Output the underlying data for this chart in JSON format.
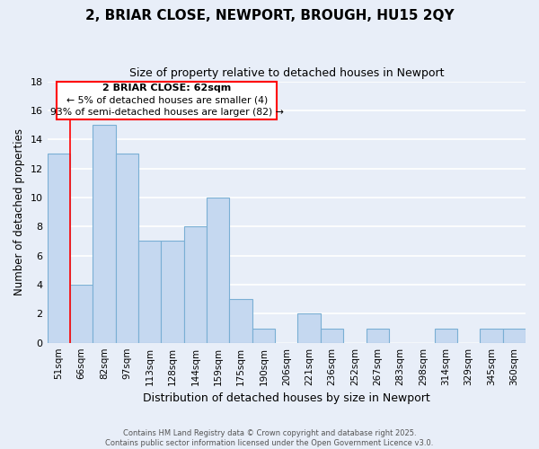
{
  "title": "2, BRIAR CLOSE, NEWPORT, BROUGH, HU15 2QY",
  "subtitle": "Size of property relative to detached houses in Newport",
  "xlabel": "Distribution of detached houses by size in Newport",
  "ylabel": "Number of detached properties",
  "bar_color": "#c5d8f0",
  "bar_edge_color": "#7aafd4",
  "bins": [
    "51sqm",
    "66sqm",
    "82sqm",
    "97sqm",
    "113sqm",
    "128sqm",
    "144sqm",
    "159sqm",
    "175sqm",
    "190sqm",
    "206sqm",
    "221sqm",
    "236sqm",
    "252sqm",
    "267sqm",
    "283sqm",
    "298sqm",
    "314sqm",
    "329sqm",
    "345sqm",
    "360sqm"
  ],
  "values": [
    13,
    4,
    15,
    13,
    7,
    7,
    8,
    10,
    3,
    1,
    0,
    2,
    1,
    0,
    1,
    0,
    0,
    1,
    0,
    1,
    1
  ],
  "ylim": [
    0,
    18
  ],
  "yticks": [
    0,
    2,
    4,
    6,
    8,
    10,
    12,
    14,
    16,
    18
  ],
  "annotation_title": "2 BRIAR CLOSE: 62sqm",
  "annotation_line1": "← 5% of detached houses are smaller (4)",
  "annotation_line2": "93% of semi-detached houses are larger (82) →",
  "background_color": "#e8eef8",
  "grid_color": "#ffffff",
  "footer_line1": "Contains HM Land Registry data © Crown copyright and database right 2025.",
  "footer_line2": "Contains public sector information licensed under the Open Government Licence v3.0."
}
